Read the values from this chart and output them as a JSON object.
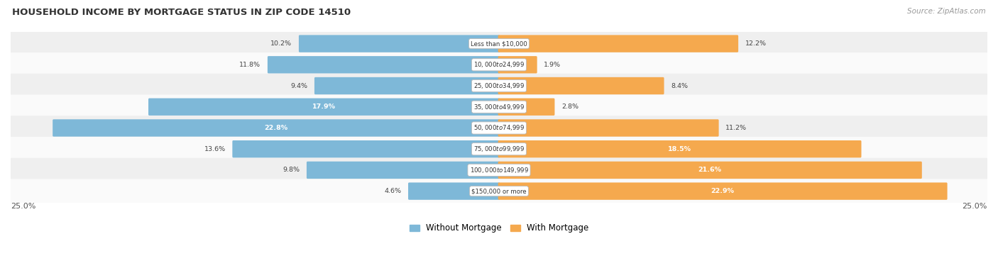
{
  "title": "HOUSEHOLD INCOME BY MORTGAGE STATUS IN ZIP CODE 14510",
  "source": "Source: ZipAtlas.com",
  "categories": [
    "Less than $10,000",
    "$10,000 to $24,999",
    "$25,000 to $34,999",
    "$35,000 to $49,999",
    "$50,000 to $74,999",
    "$75,000 to $99,999",
    "$100,000 to $149,999",
    "$150,000 or more"
  ],
  "without_mortgage": [
    10.2,
    11.8,
    9.4,
    17.9,
    22.8,
    13.6,
    9.8,
    4.6
  ],
  "with_mortgage": [
    12.2,
    1.9,
    8.4,
    2.8,
    11.2,
    18.5,
    21.6,
    22.9
  ],
  "color_without": "#7eb8d8",
  "color_with": "#f5a94e",
  "color_without_light": "#b8d8ed",
  "color_with_light": "#fad5a0",
  "xlim": 25.0,
  "legend_without": "Without Mortgage",
  "legend_with": "With Mortgage",
  "axis_label_left": "25.0%",
  "axis_label_right": "25.0%",
  "bg_odd": "#efefef",
  "bg_even": "#fafafa"
}
